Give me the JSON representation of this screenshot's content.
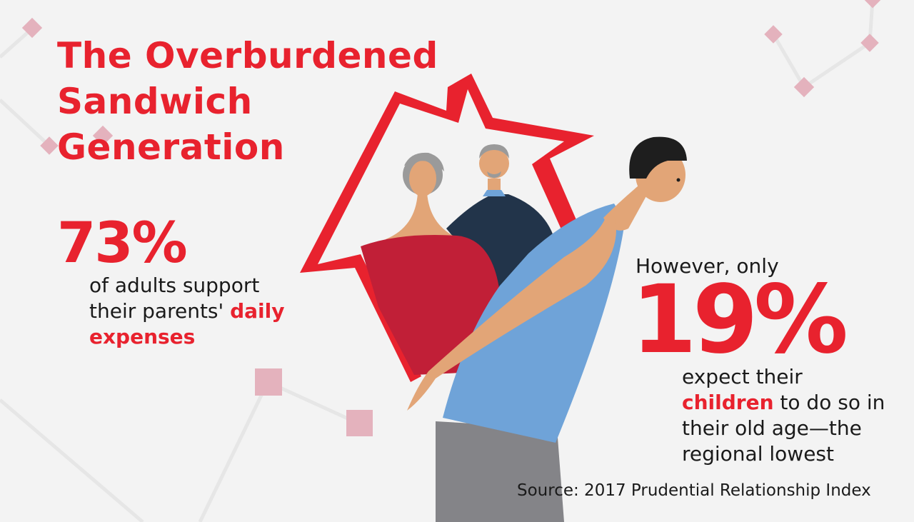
{
  "colors": {
    "accent": "#e8222e",
    "background": "#f3f3f3",
    "decor": "#e4b2bd"
  },
  "title": [
    "The Overburdened",
    "Sandwich",
    "Generation"
  ],
  "stat1": {
    "value": "73%",
    "line1": "of adults support",
    "line2_prefix": "their parents' ",
    "line2_highlight": "daily",
    "line3_highlight": "expenses"
  },
  "stat2": {
    "intro": "However, only",
    "value": "19%",
    "line1": "expect their",
    "line2_highlight": "children",
    "line2_suffix": " to do so in",
    "line3": "their old age—the",
    "line4": "regional lowest"
  },
  "source": "Source: 2017 Prudential Relationship Index"
}
